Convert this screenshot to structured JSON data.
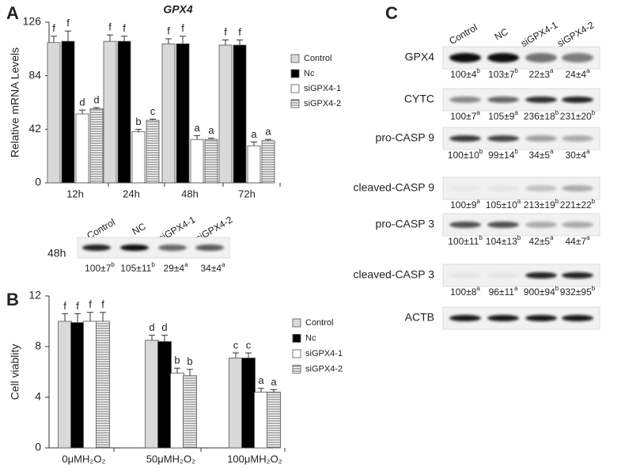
{
  "chart_data": [
    {
      "type": "bar",
      "panel": "A",
      "title": "GPX4",
      "y_label": "Relative mRNA Levels",
      "categories": [
        "12h",
        "24h",
        "48h",
        "72h"
      ],
      "ylim": [
        0,
        126
      ],
      "yticks": [
        0,
        42,
        84,
        126
      ],
      "legend": "right",
      "series": [
        {
          "name": "Control",
          "color": "#d9d9d9",
          "values": [
            110,
            111,
            109,
            108
          ],
          "errors": [
            5,
            5,
            4,
            4
          ],
          "letters": [
            "f",
            "f",
            "f",
            "f"
          ]
        },
        {
          "name": "Nc",
          "color": "#000000",
          "values": [
            111,
            111,
            109,
            108
          ],
          "errors": [
            8,
            4,
            6,
            4
          ],
          "letters": [
            "f",
            "f",
            "f",
            "f"
          ]
        },
        {
          "name": "siGPX4-1",
          "color": "#ffffff",
          "values": [
            54,
            40,
            34,
            29
          ],
          "errors": [
            3,
            2,
            3,
            3
          ],
          "letters": [
            "d",
            "b",
            "a",
            "a"
          ]
        },
        {
          "name": "siGPX4-2",
          "color": "#ffffff",
          "hatch": "horizontal",
          "values": [
            58,
            49,
            34,
            33
          ],
          "errors": [
            1,
            1,
            1,
            1
          ],
          "letters": [
            "d",
            "c",
            "a",
            "a"
          ]
        }
      ]
    },
    {
      "type": "bar",
      "panel": "B",
      "y_label": "Cell viablity",
      "categories": [
        "0μMH₂O₂",
        "50μMH₂O₂",
        "100μMH₂O₂"
      ],
      "ylim": [
        0,
        12
      ],
      "yticks": [
        0,
        4,
        8,
        12
      ],
      "legend": "right",
      "series": [
        {
          "name": "Control",
          "color": "#d9d9d9",
          "values": [
            10,
            8.5,
            7.1
          ],
          "errors": [
            0.6,
            0.4,
            0.4
          ],
          "letters": [
            "f",
            "d",
            "c"
          ]
        },
        {
          "name": "Nc",
          "color": "#000000",
          "values": [
            9.9,
            8.4,
            7.1
          ],
          "errors": [
            0.7,
            0.5,
            0.4
          ],
          "letters": [
            "f",
            "d",
            "c"
          ]
        },
        {
          "name": "siGPX4-1",
          "color": "#ffffff",
          "values": [
            10,
            5.9,
            4.4
          ],
          "errors": [
            0.7,
            0.4,
            0.3
          ],
          "letters": [
            "f",
            "b",
            "a"
          ]
        },
        {
          "name": "siGPX4-2",
          "color": "#ffffff",
          "hatch": "horizontal",
          "values": [
            10,
            5.7,
            4.4
          ],
          "errors": [
            0.7,
            0.5,
            0.2
          ],
          "letters": [
            "f",
            "b",
            "a"
          ]
        }
      ]
    }
  ],
  "blot_a": {
    "lanes": [
      "Control",
      "NC",
      "siGPX4-1",
      "siGPX4-2"
    ],
    "row": "48h",
    "quant": [
      {
        "text": "100±7",
        "sup": "b"
      },
      {
        "text": "105±11",
        "sup": "b"
      },
      {
        "text": "29±4",
        "sup": "a"
      },
      {
        "text": "34±4",
        "sup": "a"
      }
    ]
  },
  "blot_c": {
    "panel": "C",
    "lanes": [
      "Control",
      "NC",
      "siGPX4-1",
      "siGPX4-2"
    ],
    "rows": [
      {
        "name": "GPX4",
        "quant": [
          {
            "text": "100±4",
            "sup": "b"
          },
          {
            "text": "103±7",
            "sup": "b"
          },
          {
            "text": "22±3",
            "sup": "a"
          },
          {
            "text": "24±4",
            "sup": "a"
          }
        ]
      },
      {
        "name": "CYTC",
        "quant": [
          {
            "text": "100±7",
            "sup": "a"
          },
          {
            "text": "105±9",
            "sup": "a"
          },
          {
            "text": "236±18",
            "sup": "b"
          },
          {
            "text": "231±20",
            "sup": "b"
          }
        ]
      },
      {
        "name": "pro-CASP 9",
        "quant": [
          {
            "text": "100±10",
            "sup": "b"
          },
          {
            "text": "99±14",
            "sup": "b"
          },
          {
            "text": "34±5",
            "sup": "a"
          },
          {
            "text": "30±4",
            "sup": "a"
          }
        ]
      },
      {
        "name": "cleaved-CASP 9",
        "quant": [
          {
            "text": "100±9",
            "sup": "a"
          },
          {
            "text": "105±10",
            "sup": "a"
          },
          {
            "text": "213±19",
            "sup": "b"
          },
          {
            "text": "221±22",
            "sup": "b"
          }
        ]
      },
      {
        "name": "pro-CASP 3",
        "quant": [
          {
            "text": "100±11",
            "sup": "b"
          },
          {
            "text": "104±13",
            "sup": "b"
          },
          {
            "text": "42±5",
            "sup": "a"
          },
          {
            "text": "44±7",
            "sup": "a"
          }
        ]
      },
      {
        "name": "cleaved-CASP 3",
        "quant": [
          {
            "text": "100±8",
            "sup": "a"
          },
          {
            "text": "96±11",
            "sup": "a"
          },
          {
            "text": "900±94",
            "sup": "b"
          },
          {
            "text": "932±95",
            "sup": "b"
          }
        ]
      },
      {
        "name": "ACTB"
      }
    ]
  }
}
